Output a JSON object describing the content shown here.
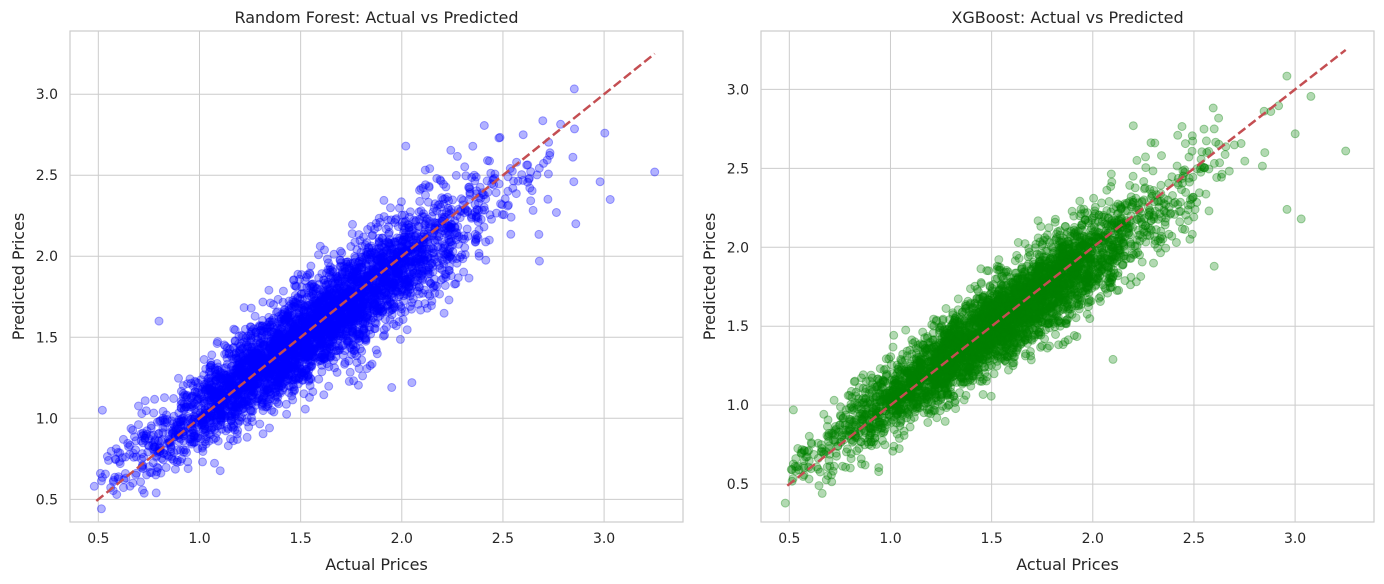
{
  "chart_data": [
    {
      "type": "scatter",
      "title": "Random Forest: Actual vs Predicted",
      "xlabel": "Actual Prices",
      "ylabel": "Predicted Prices",
      "xlim": [
        0.36,
        3.39
      ],
      "ylim": [
        0.36,
        3.39
      ],
      "xticks": [
        "0.5",
        "1.0",
        "1.5",
        "2.0",
        "2.5",
        "3.0"
      ],
      "yticks": [
        "0.5",
        "1.0",
        "1.5",
        "2.0",
        "2.5",
        "3.0"
      ],
      "grid": true,
      "reference_line": {
        "from": [
          0.49,
          0.49
        ],
        "to": [
          3.25,
          3.25
        ],
        "color": "#c44e52",
        "style": "dashed"
      },
      "color": "#0000ff",
      "marker_alpha": 0.3,
      "num_points": 4000,
      "trend": {
        "slope": 0.9,
        "intercept": 0.14,
        "noise_sd": 0.13
      },
      "notable_points": [
        [
          0.48,
          0.58
        ],
        [
          0.52,
          1.05
        ],
        [
          0.8,
          1.6
        ],
        [
          1.73,
          1.65
        ],
        [
          1.95,
          1.19
        ],
        [
          2.05,
          1.22
        ],
        [
          2.02,
          2.68
        ],
        [
          2.48,
          2.73
        ],
        [
          2.6,
          2.75
        ],
        [
          2.85,
          2.46
        ],
        [
          2.98,
          2.46
        ],
        [
          3.03,
          2.35
        ],
        [
          3.25,
          2.52
        ],
        [
          2.68,
          1.97
        ],
        [
          2.86,
          2.2
        ]
      ]
    },
    {
      "type": "scatter",
      "title": "XGBoost: Actual vs Predicted",
      "xlabel": "Actual Prices",
      "ylabel": "Predicted Prices",
      "xlim": [
        0.36,
        3.39
      ],
      "ylim": [
        0.26,
        3.37
      ],
      "xticks": [
        "0.5",
        "1.0",
        "1.5",
        "2.0",
        "2.5",
        "3.0"
      ],
      "yticks": [
        "0.5",
        "1.0",
        "1.5",
        "2.0",
        "2.5",
        "3.0"
      ],
      "grid": true,
      "reference_line": {
        "from": [
          0.49,
          0.49
        ],
        "to": [
          3.25,
          3.25
        ],
        "color": "#c44e52",
        "style": "dashed"
      },
      "color": "#008000",
      "marker_alpha": 0.3,
      "num_points": 4000,
      "trend": {
        "slope": 0.9,
        "intercept": 0.14,
        "noise_sd": 0.12
      },
      "notable_points": [
        [
          0.48,
          0.38
        ],
        [
          0.52,
          0.97
        ],
        [
          2.2,
          2.77
        ],
        [
          2.6,
          2.75
        ],
        [
          2.88,
          2.86
        ],
        [
          2.85,
          2.6
        ],
        [
          3.25,
          2.61
        ],
        [
          3.03,
          2.18
        ],
        [
          2.96,
          2.24
        ],
        [
          2.1,
          1.29
        ],
        [
          2.3,
          1.9
        ],
        [
          2.6,
          1.88
        ]
      ]
    }
  ]
}
